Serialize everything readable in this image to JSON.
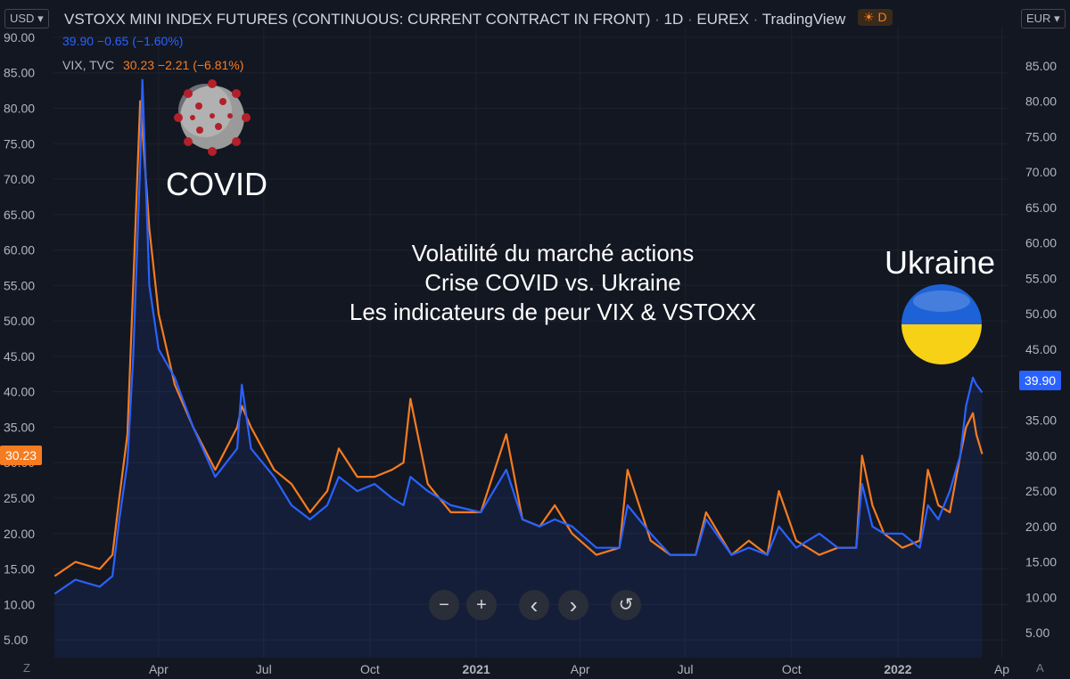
{
  "header": {
    "symbol_title": "VSTOXX MINI INDEX FUTURES (CONTINUOUS: CURRENT CONTRACT IN FRONT)",
    "interval": "1D",
    "exchange": "EUREX",
    "source": "TradingView",
    "mode_badge": "D",
    "left_currency": "USD",
    "right_currency": "EUR",
    "vstoxx_values": "39.90  −0.65 (−1.60%)",
    "vix_label": "VIX, TVC",
    "vix_values": "30.23  −2.21 (−6.81%)"
  },
  "annotations": {
    "covid": "COVID",
    "ukraine": "Ukraine",
    "title_lines": [
      "Volatilité du marché actions",
      "Crise COVID vs. Ukraine",
      "Les indicateurs de peur VIX & VSTOXX"
    ]
  },
  "controls": {
    "zoom_out": "−",
    "zoom_in": "+",
    "scroll_left": "‹",
    "scroll_right": "›",
    "reset": "↺"
  },
  "footer": {
    "left_corner": "Z",
    "right_corner": "A"
  },
  "colors": {
    "vstoxx": "#2962ff",
    "vix": "#f57c20",
    "background": "#131722",
    "grid": "#1e222d"
  },
  "chart_data": {
    "type": "line",
    "x_axis_ticks": [
      "Apr",
      "Jul",
      "Oct",
      "2021",
      "Apr",
      "Jul",
      "Oct",
      "2022",
      "Ap"
    ],
    "left_axis": {
      "ylim": [
        2.5,
        91.5
      ],
      "ticks": [
        "5.00",
        "10.00",
        "15.00",
        "20.00",
        "25.00",
        "30.00",
        "35.00",
        "40.00",
        "45.00",
        "50.00",
        "55.00",
        "60.00",
        "65.00",
        "70.00",
        "75.00",
        "80.00",
        "85.00",
        "90.00"
      ]
    },
    "right_axis": {
      "ylim": [
        1.5,
        90.5
      ],
      "ticks": [
        "5.00",
        "10.00",
        "15.00",
        "20.00",
        "25.00",
        "30.00",
        "35.00",
        "40.00",
        "45.00",
        "50.00",
        "55.00",
        "60.00",
        "65.00",
        "70.00",
        "75.00",
        "80.00",
        "85.00"
      ]
    },
    "grid": true,
    "last_value_labels": {
      "vstoxx": "39.90",
      "vix": "30.23"
    },
    "x": [
      "2020-01-02",
      "2020-01-20",
      "2020-02-10",
      "2020-02-21",
      "2020-02-27",
      "2020-03-05",
      "2020-03-10",
      "2020-03-16",
      "2020-03-18",
      "2020-03-24",
      "2020-04-01",
      "2020-04-15",
      "2020-05-01",
      "2020-05-20",
      "2020-06-08",
      "2020-06-12",
      "2020-06-20",
      "2020-07-10",
      "2020-07-25",
      "2020-08-10",
      "2020-08-25",
      "2020-09-04",
      "2020-09-20",
      "2020-10-05",
      "2020-10-20",
      "2020-10-30",
      "2020-11-05",
      "2020-11-20",
      "2020-12-10",
      "2021-01-05",
      "2021-01-27",
      "2021-02-10",
      "2021-02-25",
      "2021-03-10",
      "2021-03-25",
      "2021-04-15",
      "2021-05-05",
      "2021-05-12",
      "2021-06-01",
      "2021-06-18",
      "2021-07-10",
      "2021-07-19",
      "2021-08-10",
      "2021-08-25",
      "2021-09-10",
      "2021-09-20",
      "2021-10-05",
      "2021-10-25",
      "2021-11-10",
      "2021-11-26",
      "2021-12-01",
      "2021-12-10",
      "2021-12-20",
      "2022-01-05",
      "2022-01-20",
      "2022-01-27",
      "2022-02-05",
      "2022-02-15",
      "2022-02-24",
      "2022-03-01",
      "2022-03-07",
      "2022-03-10",
      "2022-03-15"
    ],
    "series": [
      {
        "name": "VSTOXX MINI INDEX FUTURES",
        "values": [
          11.5,
          13.5,
          12.5,
          14,
          22,
          30,
          45,
          72,
          84,
          55,
          46,
          42,
          35,
          28,
          32,
          41,
          32,
          28,
          24,
          22,
          24,
          28,
          26,
          27,
          25,
          24,
          28,
          26,
          24,
          23,
          29,
          22,
          21,
          22,
          21,
          18,
          18,
          24,
          20,
          17,
          17,
          22,
          17,
          18,
          17,
          21,
          18,
          20,
          18,
          18,
          27,
          21,
          20,
          20,
          18,
          24,
          22,
          26,
          31,
          38,
          42,
          41,
          39.9
        ]
      },
      {
        "name": "VIX, TVC",
        "values": [
          13,
          15,
          14,
          16,
          24,
          33,
          54,
          80,
          76,
          62,
          50,
          40,
          34,
          28,
          34,
          37,
          34,
          28,
          26,
          22,
          25,
          31,
          27,
          27,
          28,
          29,
          38,
          26,
          22,
          22,
          33,
          21,
          20,
          23,
          19,
          16,
          17,
          28,
          18,
          16,
          16,
          22,
          16,
          18,
          16,
          25,
          18,
          16,
          17,
          17,
          30,
          23,
          19,
          17,
          18,
          28,
          23,
          22,
          30,
          34,
          36,
          33,
          30.23
        ]
      }
    ]
  }
}
